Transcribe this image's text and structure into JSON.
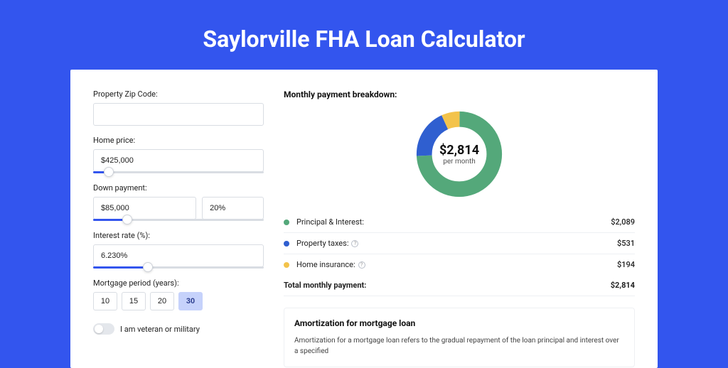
{
  "page": {
    "title": "Saylorville FHA Loan Calculator",
    "background_color": "#3355ee",
    "panel_background": "#ffffff"
  },
  "form": {
    "zip": {
      "label": "Property Zip Code:",
      "value": ""
    },
    "home_price": {
      "label": "Home price:",
      "value": "$425,000",
      "slider_pct": 9
    },
    "down_payment": {
      "label": "Down payment:",
      "amount": "$85,000",
      "percent": "20%",
      "slider_pct": 20
    },
    "interest_rate": {
      "label": "Interest rate (%):",
      "value": "6.230%",
      "slider_pct": 32
    },
    "mortgage_period": {
      "label": "Mortgage period (years):",
      "options": [
        "10",
        "15",
        "20",
        "30"
      ],
      "selected": "30"
    },
    "veteran": {
      "label": "I am veteran or military",
      "checked": false
    }
  },
  "breakdown": {
    "title": "Monthly payment breakdown:",
    "donut": {
      "amount": "$2,814",
      "subtitle": "per month",
      "slices": [
        {
          "name": "principal_interest",
          "value": 2089,
          "color": "#54a87a"
        },
        {
          "name": "property_taxes",
          "value": 531,
          "color": "#2f5fd0"
        },
        {
          "name": "home_insurance",
          "value": 194,
          "color": "#f3c34b"
        }
      ]
    },
    "legend": [
      {
        "dot_color": "#54a87a",
        "label": "Principal & Interest:",
        "value": "$2,089",
        "info": false
      },
      {
        "dot_color": "#2f5fd0",
        "label": "Property taxes:",
        "value": "$531",
        "info": true
      },
      {
        "dot_color": "#f3c34b",
        "label": "Home insurance:",
        "value": "$194",
        "info": true
      }
    ],
    "total": {
      "label": "Total monthly payment:",
      "value": "$2,814"
    }
  },
  "amortization": {
    "title": "Amortization for mortgage loan",
    "text": "Amortization for a mortgage loan refers to the gradual repayment of the loan principal and interest over a specified"
  }
}
